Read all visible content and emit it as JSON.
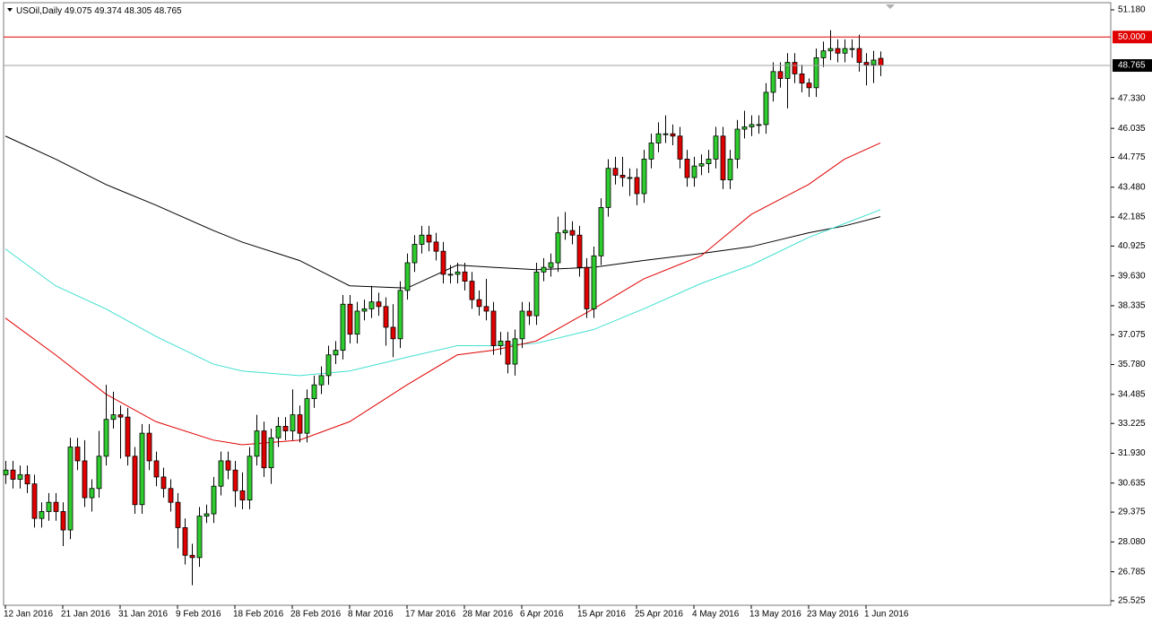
{
  "chart_data": {
    "type": "candlestick",
    "title": "USOil,Daily",
    "categories": [
      "12 Jan 2016",
      null,
      null,
      null,
      null,
      null,
      null,
      null,
      "21 Jan 2016",
      null,
      null,
      null,
      null,
      null,
      null,
      null,
      "31 Jan 2016",
      null,
      null,
      null,
      null,
      null,
      null,
      null,
      "9 Feb 2016",
      null,
      null,
      null,
      null,
      null,
      null,
      null,
      "18 Feb 2016",
      null,
      null,
      null,
      null,
      null,
      null,
      null,
      "28 Feb 2016",
      null,
      null,
      null,
      null,
      null,
      null,
      null,
      "8 Mar 2016",
      null,
      null,
      null,
      null,
      null,
      null,
      null,
      "17 Mar 2016",
      null,
      null,
      null,
      null,
      null,
      null,
      null,
      "28 Mar 2016",
      null,
      null,
      null,
      null,
      null,
      null,
      null,
      "6 Apr 2016",
      null,
      null,
      null,
      null,
      null,
      null,
      null,
      "15 Apr 2016",
      null,
      null,
      null,
      null,
      null,
      null,
      null,
      "25 Apr 2016",
      null,
      null,
      null,
      null,
      null,
      null,
      null,
      "4 May 2016",
      null,
      null,
      null,
      null,
      null,
      null,
      null,
      "13 May 2016",
      null,
      null,
      null,
      null,
      null,
      null,
      null,
      "23 May 2016",
      null,
      null,
      null,
      null,
      null,
      null,
      null,
      "1 Jun 2016",
      null,
      null
    ],
    "open": [
      31.0,
      31.2,
      30.8,
      31.0,
      30.6,
      29.1,
      29.4,
      29.8,
      29.4,
      28.6,
      32.2,
      31.6,
      30.0,
      30.4,
      31.8,
      33.4,
      33.6,
      33.5,
      31.8,
      29.7,
      32.8,
      31.6,
      30.9,
      30.4,
      29.8,
      28.7,
      27.5,
      27.4,
      29.2,
      29.3,
      30.5,
      31.6,
      31.2,
      30.3,
      29.9,
      31.8,
      32.9,
      31.3,
      32.6,
      33.1,
      32.9,
      33.6,
      32.8,
      34.3,
      34.9,
      35.3,
      36.2,
      36.4,
      38.4,
      37.1,
      38.1,
      38.2,
      38.5,
      38.3,
      37.4,
      36.9,
      39.0,
      40.2,
      41.0,
      41.4,
      41.1,
      40.7,
      39.7,
      39.7,
      39.8,
      39.4,
      38.6,
      38.3,
      38.1,
      36.6,
      36.8,
      35.8,
      36.9,
      38.1,
      37.9,
      39.8,
      40.0,
      40.2,
      41.5,
      41.6,
      41.4,
      40.0,
      38.2,
      40.5,
      42.6,
      44.3,
      44.0,
      43.9,
      43.9,
      43.2,
      44.7,
      45.4,
      45.8,
      45.8,
      45.7,
      44.7,
      43.9,
      44.4,
      44.5,
      44.7,
      45.7,
      43.8,
      44.7,
      46.0,
      46.1,
      46.2,
      46.2,
      47.6,
      48.5,
      48.2,
      48.9,
      48.4,
      48.0,
      47.8,
      49.1,
      49.4,
      49.5,
      49.3,
      49.5,
      49.5,
      48.9,
      48.8,
      49.075
    ],
    "high": [
      31.6,
      31.6,
      31.4,
      31.4,
      31.0,
      29.8,
      30.2,
      30.2,
      29.8,
      32.6,
      32.6,
      32.5,
      30.8,
      32.9,
      34.9,
      34.6,
      34.0,
      33.9,
      32.2,
      33.2,
      33.2,
      32.0,
      31.3,
      30.8,
      30.2,
      29.1,
      28.0,
      29.6,
      29.7,
      30.9,
      32.0,
      32.0,
      31.6,
      31.1,
      32.2,
      33.6,
      33.3,
      33.0,
      33.5,
      33.5,
      34.7,
      34.0,
      34.7,
      35.3,
      35.7,
      36.6,
      36.8,
      38.8,
      38.8,
      38.5,
      38.6,
      39.2,
      38.9,
      38.7,
      38.4,
      39.4,
      40.6,
      41.4,
      41.8,
      41.8,
      41.5,
      41.1,
      40.1,
      40.2,
      40.2,
      39.8,
      39.0,
      39.5,
      38.5,
      37.2,
      37.2,
      37.3,
      38.5,
      38.5,
      40.2,
      40.4,
      40.6,
      42.2,
      42.4,
      42.0,
      41.8,
      40.4,
      40.9,
      43.0,
      44.7,
      44.8,
      44.8,
      44.3,
      44.3,
      45.1,
      45.8,
      46.3,
      46.6,
      46.2,
      46.1,
      45.1,
      44.8,
      44.9,
      45.1,
      46.1,
      46.1,
      45.1,
      46.4,
      46.8,
      46.6,
      46.6,
      48.0,
      48.9,
      48.9,
      49.3,
      49.3,
      48.8,
      48.2,
      49.5,
      49.8,
      50.3,
      49.9,
      49.9,
      49.9,
      50.1,
      49.3,
      49.4,
      49.374
    ],
    "low": [
      30.6,
      30.4,
      30.4,
      30.2,
      28.7,
      28.7,
      29.0,
      29.0,
      27.9,
      28.2,
      31.2,
      29.6,
      29.4,
      30.0,
      31.4,
      33.0,
      31.7,
      31.4,
      29.3,
      29.3,
      31.2,
      30.5,
      30.0,
      29.4,
      27.8,
      27.1,
      26.2,
      27.0,
      28.9,
      28.9,
      30.1,
      30.8,
      29.6,
      29.5,
      29.5,
      31.4,
      30.9,
      30.6,
      32.2,
      32.5,
      32.5,
      32.4,
      32.4,
      33.9,
      34.5,
      34.9,
      35.8,
      36.0,
      36.7,
      36.7,
      37.7,
      37.8,
      37.9,
      36.6,
      36.1,
      36.5,
      38.6,
      39.8,
      40.6,
      40.7,
      40.3,
      39.3,
      39.3,
      39.3,
      39.0,
      38.2,
      37.9,
      37.7,
      36.2,
      36.2,
      35.4,
      35.3,
      36.5,
      37.5,
      37.5,
      39.4,
      39.6,
      39.8,
      41.2,
      41.0,
      39.6,
      37.8,
      37.8,
      40.1,
      42.2,
      43.6,
      43.5,
      43.1,
      42.7,
      42.8,
      44.3,
      45.0,
      45.4,
      45.3,
      44.3,
      43.5,
      43.5,
      44.0,
      44.1,
      44.3,
      43.4,
      43.4,
      44.3,
      45.6,
      45.7,
      45.8,
      45.8,
      47.2,
      47.8,
      46.9,
      48.0,
      47.6,
      47.4,
      47.4,
      48.7,
      49.0,
      48.9,
      48.9,
      49.1,
      48.5,
      47.9,
      48.0,
      48.305
    ],
    "close": [
      31.2,
      30.8,
      31.0,
      30.6,
      29.1,
      29.4,
      29.8,
      29.4,
      28.6,
      32.2,
      31.6,
      30.0,
      30.4,
      31.8,
      33.4,
      33.6,
      33.5,
      31.8,
      29.7,
      32.8,
      31.6,
      30.9,
      30.4,
      29.8,
      28.7,
      27.5,
      27.4,
      29.2,
      29.3,
      30.5,
      31.6,
      31.2,
      30.3,
      29.9,
      31.8,
      32.9,
      31.3,
      32.6,
      33.1,
      32.9,
      33.6,
      32.8,
      34.3,
      34.9,
      35.3,
      36.2,
      36.4,
      38.4,
      37.1,
      38.1,
      38.2,
      38.5,
      38.3,
      37.4,
      36.9,
      39.0,
      40.2,
      41.0,
      41.4,
      41.1,
      40.7,
      39.7,
      39.7,
      39.8,
      39.4,
      38.6,
      38.3,
      38.1,
      36.6,
      36.8,
      35.8,
      36.9,
      38.1,
      37.9,
      39.8,
      40.0,
      40.2,
      41.5,
      41.6,
      41.4,
      40.0,
      38.2,
      40.5,
      42.6,
      44.3,
      44.0,
      43.9,
      43.9,
      43.2,
      44.7,
      45.4,
      45.8,
      45.8,
      45.7,
      44.7,
      43.9,
      44.4,
      44.5,
      44.7,
      45.7,
      43.8,
      44.7,
      46.0,
      46.1,
      46.2,
      46.2,
      47.6,
      48.5,
      48.2,
      48.9,
      48.4,
      48.0,
      47.8,
      49.1,
      49.4,
      49.5,
      49.3,
      49.5,
      49.5,
      48.9,
      48.8,
      49.0,
      48.765
    ],
    "up_color": "#2ecc2e",
    "down_color": "#e00000",
    "moving_averages": [
      {
        "color": "#000000",
        "x": [
          0,
          7,
          14,
          21,
          29,
          33,
          41,
          48,
          56,
          63,
          68,
          74,
          82,
          89,
          97,
          104,
          112,
          117,
          122
        ],
        "values": [
          45.7,
          44.7,
          43.6,
          42.7,
          41.6,
          41.1,
          40.3,
          39.2,
          39.1,
          40.1,
          40.0,
          39.9,
          40.0,
          40.3,
          40.6,
          40.9,
          41.5,
          41.8,
          42.2
        ]
      },
      {
        "color": "#40e0d0",
        "x": [
          0,
          7,
          14,
          21,
          29,
          33,
          41,
          48,
          56,
          63,
          68,
          74,
          82,
          89,
          97,
          104,
          112,
          117,
          122
        ],
        "values": [
          40.8,
          39.2,
          38.2,
          37.0,
          35.8,
          35.5,
          35.3,
          35.5,
          36.1,
          36.6,
          36.6,
          36.7,
          37.3,
          38.2,
          39.3,
          40.1,
          41.3,
          41.9,
          42.5
        ]
      },
      {
        "color": "#e00000",
        "x": [
          0,
          7,
          14,
          21,
          29,
          33,
          41,
          48,
          56,
          63,
          68,
          74,
          82,
          89,
          97,
          104,
          112,
          117,
          122
        ],
        "values": [
          37.8,
          36.2,
          34.5,
          33.3,
          32.5,
          32.3,
          32.5,
          33.3,
          34.9,
          36.2,
          36.4,
          36.8,
          38.2,
          39.5,
          40.5,
          42.3,
          43.6,
          44.7,
          45.4
        ]
      }
    ],
    "level": {
      "value": 50,
      "label": "50.000",
      "color": "#e00000"
    },
    "ylim": [
      25.33,
      51.491
    ],
    "yticks": [
      {
        "value": 51.18,
        "label": "51.180"
      },
      {
        "value": 47.33,
        "label": "47.330"
      },
      46.035,
      44.775,
      {
        "value": 43.48,
        "label": "43.480"
      },
      42.185,
      40.925,
      {
        "value": 39.63,
        "label": "39.630"
      },
      38.335,
      37.075,
      {
        "value": 35.78,
        "label": "35.780"
      },
      34.485,
      33.225,
      {
        "value": 31.93,
        "label": "31.930"
      },
      30.635,
      29.375,
      {
        "value": 28.08,
        "label": "28.080"
      },
      26.785,
      25.525
    ],
    "grid": false
  }
}
